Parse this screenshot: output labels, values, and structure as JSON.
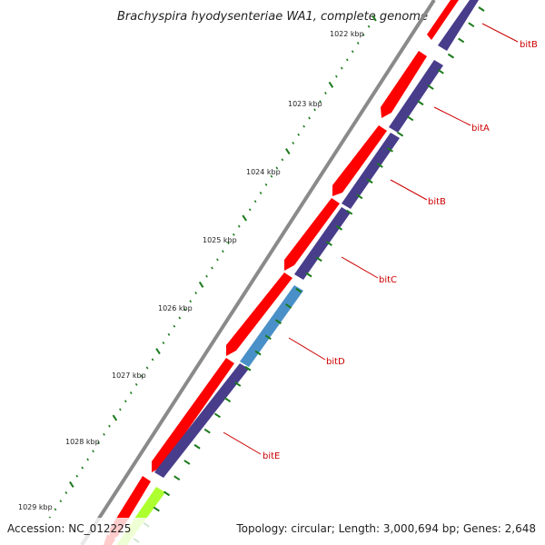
{
  "title": "Brachyspira hyodysenteriae WA1, complete genome",
  "footer": {
    "accession": "Accession: NC_012225",
    "topology": "Topology: circular; Length: 3,000,694 bp; Genes: 2,648"
  },
  "colors": {
    "forward_cds": "#ff0000",
    "forward_cds_dark": "#cc0000",
    "reverse_cds": "#483d8b",
    "reverse_highlight": "#4a90c8",
    "green_feature": "#adff2f",
    "backbone": "#808080",
    "label_line": "#cc0000",
    "tick": "#1a7a1a"
  },
  "ruler": {
    "labels": [
      "1022 kbp",
      "1023 kbp",
      "1024 kbp",
      "1025 kbp",
      "1026 kbp",
      "1027 kbp",
      "1028 kbp",
      "1029 kbp"
    ]
  },
  "genes": [
    {
      "name": "bitB",
      "label": "bitB"
    },
    {
      "name": "bitA",
      "label": "bitA"
    },
    {
      "name": "bitB",
      "label": "bitB"
    },
    {
      "name": "bitC",
      "label": "bitC"
    },
    {
      "name": "bitD",
      "label": "bitD"
    },
    {
      "name": "bitE",
      "label": "bitE"
    }
  ]
}
